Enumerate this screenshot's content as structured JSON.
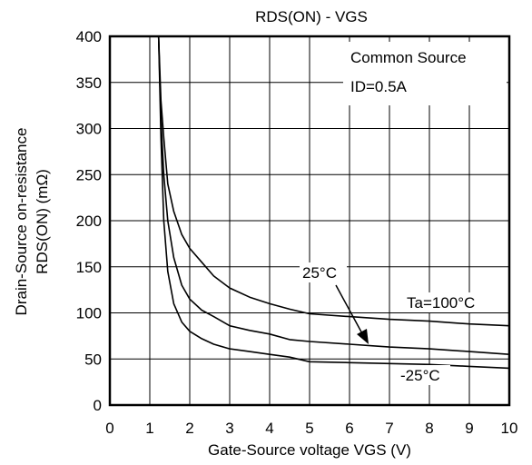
{
  "chart_data": {
    "type": "line",
    "title": "RDS(ON) - VGS",
    "xlabel": "Gate-Source voltage  VGS (V)",
    "ylabel_line1": "Drain-Source on-resistance",
    "ylabel_line2": "RDS(ON) (mΩ)",
    "xlim": [
      0,
      10
    ],
    "ylim": [
      0,
      400
    ],
    "x_ticks": [
      0,
      1,
      2,
      3,
      4,
      5,
      6,
      7,
      8,
      9,
      10
    ],
    "y_ticks": [
      0,
      50,
      100,
      150,
      200,
      250,
      300,
      350,
      400
    ],
    "grid": true,
    "annotations": {
      "condition_line1": "Common Source",
      "condition_line2": "ID=0.5A",
      "label_ta100": "Ta=100°C",
      "label_25": "25°C",
      "label_minus25": "-25°C"
    },
    "series": [
      {
        "name": "Ta=100°C",
        "x": [
          1.22,
          1.28,
          1.35,
          1.45,
          1.6,
          1.8,
          2.0,
          2.3,
          2.6,
          3.0,
          3.5,
          4.0,
          4.5,
          5.0,
          6.0,
          7.0,
          8.0,
          9.0,
          10.0
        ],
        "y": [
          400,
          330,
          290,
          240,
          210,
          185,
          170,
          155,
          140,
          127,
          117,
          110,
          104,
          99,
          96,
          93,
          91,
          88,
          86
        ]
      },
      {
        "name": "25°C",
        "x": [
          1.22,
          1.28,
          1.35,
          1.45,
          1.6,
          1.8,
          2.0,
          2.3,
          2.6,
          3.0,
          3.5,
          4.0,
          4.5,
          5.0,
          6.0,
          7.0,
          8.0,
          9.0,
          10.0
        ],
        "y": [
          400,
          310,
          250,
          200,
          160,
          130,
          115,
          103,
          96,
          86,
          81,
          77,
          71,
          69,
          66,
          63,
          61,
          58,
          55
        ]
      },
      {
        "name": "-25°C",
        "x": [
          1.22,
          1.28,
          1.35,
          1.45,
          1.6,
          1.8,
          2.0,
          2.3,
          2.6,
          3.0,
          3.5,
          4.0,
          4.5,
          5.0,
          6.0,
          7.0,
          8.0,
          9.0,
          10.0
        ],
        "y": [
          400,
          290,
          200,
          145,
          110,
          90,
          80,
          72,
          66,
          61,
          58,
          55,
          52,
          47,
          46,
          45,
          44,
          42,
          40
        ]
      }
    ],
    "colors": {
      "line": "#000000",
      "grid": "#000000",
      "background": "#ffffff"
    }
  }
}
